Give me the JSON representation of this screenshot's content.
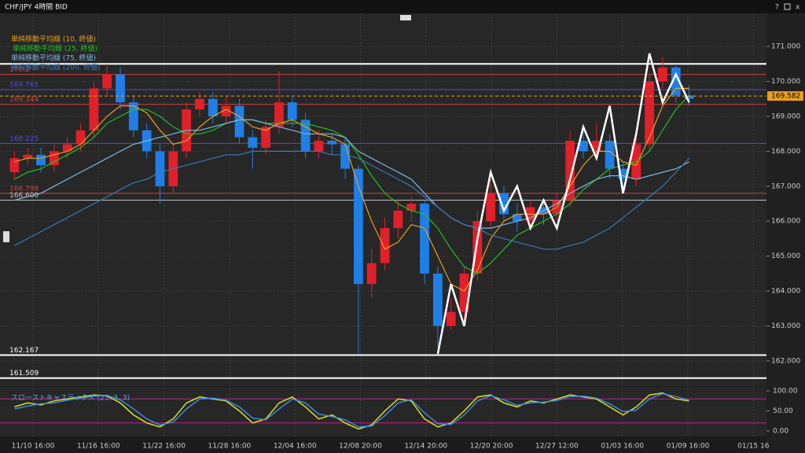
{
  "header": {
    "title": "CHF/JPY 4時間 BID",
    "help": "?",
    "close": "x"
  },
  "chart_data": {
    "type": "candlestick",
    "up_color": "#e0202a",
    "down_color": "#1f7fe6",
    "open": [
      167.4,
      167.8,
      167.9,
      167.6,
      168.0,
      168.2,
      168.6,
      169.8,
      170.2,
      169.4,
      168.6,
      168.0,
      167.0,
      168.0,
      169.2,
      169.5,
      169.0,
      169.3,
      168.4,
      168.1,
      168.7,
      169.4,
      168.9,
      168.0,
      168.3,
      168.2,
      167.5,
      164.2,
      164.8,
      165.8,
      166.3,
      166.5,
      164.5,
      163.0,
      163.4,
      164.5,
      166.0,
      166.8,
      166.2,
      166.0,
      166.4,
      166.2,
      166.6,
      168.3,
      168.0,
      168.3,
      167.5,
      167.2,
      168.2,
      170.0,
      170.4,
      169.6
    ],
    "high": [
      168.0,
      168.1,
      168.1,
      168.2,
      168.4,
      168.8,
      170.0,
      170.5,
      170.4,
      169.6,
      168.8,
      168.2,
      168.2,
      169.4,
      169.7,
      169.7,
      169.6,
      169.5,
      168.6,
      168.9,
      170.3,
      169.6,
      169.1,
      168.6,
      168.5,
      168.4,
      167.6,
      165.2,
      166.1,
      166.6,
      166.7,
      166.6,
      164.7,
      163.8,
      164.7,
      166.3,
      167.2,
      167.0,
      166.5,
      166.6,
      166.6,
      166.8,
      168.6,
      168.6,
      168.8,
      168.5,
      167.7,
      168.4,
      170.2,
      170.7,
      170.5,
      169.9
    ],
    "low": [
      167.2,
      167.6,
      167.4,
      167.4,
      167.8,
      168.0,
      168.4,
      169.6,
      169.2,
      168.4,
      167.8,
      166.5,
      166.8,
      167.8,
      169.0,
      168.8,
      168.8,
      168.2,
      167.5,
      167.9,
      168.5,
      168.7,
      167.8,
      167.8,
      167.9,
      167.2,
      162.2,
      163.8,
      164.6,
      165.5,
      166.0,
      164.2,
      162.4,
      162.9,
      163.2,
      164.3,
      165.8,
      166.0,
      165.7,
      165.8,
      165.9,
      166.0,
      166.4,
      167.8,
      167.8,
      167.2,
      166.9,
      167.0,
      168.0,
      169.8,
      169.4,
      169.3
    ],
    "close": [
      167.8,
      167.9,
      167.6,
      168.0,
      168.2,
      168.6,
      169.8,
      170.2,
      169.4,
      168.6,
      168.0,
      167.0,
      168.0,
      169.2,
      169.5,
      169.0,
      169.3,
      168.4,
      168.1,
      168.7,
      169.4,
      168.9,
      168.0,
      168.3,
      168.2,
      167.5,
      164.2,
      164.8,
      165.8,
      166.3,
      166.5,
      164.5,
      163.0,
      163.4,
      164.5,
      166.0,
      166.8,
      166.2,
      166.0,
      166.4,
      166.2,
      166.6,
      168.3,
      168.0,
      168.3,
      167.5,
      167.2,
      168.2,
      170.0,
      170.4,
      169.6,
      169.5
    ],
    "indicators": [
      {
        "name": "単純移動平均線 (10, 終値)",
        "color": "#e8a020",
        "values": [
          167.7,
          167.8,
          167.8,
          167.9,
          168.0,
          168.2,
          168.6,
          169.0,
          169.3,
          169.3,
          169.1,
          168.6,
          168.2,
          168.3,
          168.7,
          169.0,
          169.2,
          169.0,
          168.7,
          168.6,
          168.8,
          168.9,
          168.7,
          168.5,
          168.4,
          168.2,
          167.0,
          166.0,
          165.2,
          165.4,
          165.9,
          165.8,
          165.0,
          164.2,
          164.0,
          164.6,
          165.5,
          166.0,
          166.2,
          166.2,
          166.2,
          166.4,
          167.0,
          167.6,
          168.0,
          168.0,
          167.7,
          167.6,
          168.4,
          169.3,
          169.8,
          169.8
        ]
      },
      {
        "name": "単純移動平均線 (25, 終値)",
        "color": "#22c022",
        "values": [
          167.2,
          167.4,
          167.5,
          167.7,
          167.9,
          168.1,
          168.4,
          168.8,
          169.0,
          169.2,
          169.2,
          169.0,
          168.7,
          168.5,
          168.5,
          168.6,
          168.8,
          168.9,
          168.9,
          168.8,
          168.8,
          168.8,
          168.8,
          168.7,
          168.6,
          168.4,
          167.9,
          167.3,
          166.8,
          166.5,
          166.3,
          166.2,
          165.8,
          165.2,
          164.7,
          164.5,
          164.8,
          165.2,
          165.6,
          165.8,
          166.0,
          166.2,
          166.5,
          166.9,
          167.2,
          167.5,
          167.6,
          167.7,
          168.0,
          168.6,
          169.2,
          169.6
        ]
      },
      {
        "name": "単純移動平均線 (75, 終値)",
        "color": "#7fb8e0",
        "values": [
          166.6,
          166.7,
          166.8,
          167.0,
          167.2,
          167.4,
          167.6,
          167.8,
          168.0,
          168.2,
          168.3,
          168.4,
          168.5,
          168.6,
          168.6,
          168.7,
          168.8,
          168.9,
          168.9,
          168.8,
          168.7,
          168.6,
          168.5,
          168.5,
          168.5,
          168.4,
          168.0,
          167.8,
          167.6,
          167.4,
          167.2,
          166.8,
          166.4,
          166.1,
          165.9,
          165.8,
          165.8,
          165.9,
          166.0,
          166.1,
          166.3,
          166.5,
          166.8,
          167.0,
          167.2,
          167.3,
          167.3,
          167.2,
          167.3,
          167.4,
          167.5,
          167.7
        ]
      },
      {
        "name": "単純移動平均線 (200, 終値)",
        "color": "#3a78b8",
        "values": [
          165.3,
          165.5,
          165.7,
          165.9,
          166.1,
          166.3,
          166.5,
          166.7,
          166.9,
          167.1,
          167.2,
          167.4,
          167.5,
          167.6,
          167.7,
          167.8,
          167.9,
          167.9,
          168.0,
          168.0,
          168.0,
          168.0,
          168.0,
          168.0,
          167.9,
          167.9,
          167.8,
          167.6,
          167.4,
          167.2,
          167.0,
          166.7,
          166.4,
          166.1,
          165.9,
          165.8,
          165.6,
          165.5,
          165.4,
          165.3,
          165.2,
          165.2,
          165.3,
          165.4,
          165.6,
          165.8,
          166.1,
          166.4,
          166.7,
          167.0,
          167.4,
          167.8
        ]
      }
    ],
    "zigzag": {
      "color": "#ffffff",
      "values": [
        null,
        null,
        null,
        null,
        null,
        null,
        null,
        null,
        null,
        null,
        null,
        null,
        null,
        null,
        null,
        null,
        null,
        null,
        null,
        null,
        null,
        null,
        null,
        null,
        null,
        null,
        null,
        null,
        null,
        null,
        null,
        null,
        162.2,
        164.2,
        163.0,
        165.5,
        167.4,
        166.3,
        167.0,
        165.8,
        166.6,
        165.8,
        167.2,
        168.7,
        167.8,
        169.3,
        166.8,
        168.5,
        170.8,
        169.4,
        170.2,
        169.4
      ]
    },
    "levels": [
      {
        "value": 170.5,
        "color": "#ffffff"
      },
      {
        "value": 170.2,
        "color": "#d04040"
      },
      {
        "value": 169.765,
        "color": "#5050d0"
      },
      {
        "value": 169.344,
        "color": "#d04040"
      },
      {
        "value": 168.225,
        "color": "#5050d0"
      },
      {
        "value": 166.798,
        "color": "#d04040"
      },
      {
        "value": 166.6,
        "label": "166.600",
        "color": "#c0c0c0"
      },
      {
        "value": 162.167,
        "color": "#ffffff"
      },
      {
        "value": 161.509,
        "color": "#ffffff"
      }
    ],
    "current_price": {
      "value": 169.582,
      "color": "#e8a020"
    },
    "ylim": [
      161.3,
      171.7
    ],
    "yticks": [
      {
        "value": 162,
        "label": "162.000"
      },
      {
        "value": 163,
        "label": "163.000"
      },
      {
        "value": 164,
        "label": "164.000"
      },
      {
        "value": 165,
        "label": "165.000"
      },
      {
        "value": 166,
        "label": "166.000"
      },
      {
        "value": 167,
        "label": "167.000"
      },
      {
        "value": 168,
        "label": "168.000"
      },
      {
        "value": 169,
        "label": "169.000"
      },
      {
        "value": 170,
        "label": "170.000"
      },
      {
        "value": 171,
        "label": "171.000"
      }
    ],
    "xticks": [
      "11/10 16:00",
      "11/16 16:00",
      "11/22 16:00",
      "11/28 16:00",
      "12/04 16:00",
      "12/08 20:00",
      "12/14 20:00",
      "12/20 20:00",
      "12/27 12:00",
      "01/03 16:00",
      "01/09 16:00",
      "01/15 16"
    ],
    "grid": true,
    "stochastics": {
      "title": "スローストキャスティクス (25, 3, 3)",
      "ylim": [
        -10,
        110
      ],
      "yticks": [
        {
          "value": 0,
          "label": "0.00"
        },
        {
          "value": 50,
          "label": "50.00"
        },
        {
          "value": 100,
          "label": "100.00"
        }
      ],
      "levels": [
        80,
        20
      ],
      "level_color": "#c0208a",
      "series": [
        {
          "color": "#e0e020",
          "values": [
            60,
            70,
            65,
            75,
            80,
            85,
            90,
            88,
            70,
            40,
            20,
            10,
            30,
            70,
            85,
            80,
            75,
            50,
            20,
            30,
            70,
            85,
            60,
            30,
            40,
            20,
            5,
            15,
            50,
            80,
            75,
            30,
            10,
            20,
            50,
            85,
            90,
            70,
            60,
            75,
            70,
            80,
            90,
            85,
            80,
            60,
            40,
            60,
            90,
            95,
            80,
            75
          ]
        },
        {
          "color": "#3a8ae0",
          "values": [
            55,
            62,
            68,
            70,
            77,
            82,
            87,
            89,
            78,
            55,
            30,
            15,
            22,
            55,
            80,
            82,
            77,
            60,
            32,
            28,
            55,
            80,
            70,
            42,
            36,
            28,
            10,
            12,
            38,
            70,
            78,
            45,
            18,
            16,
            40,
            75,
            88,
            78,
            64,
            70,
            72,
            76,
            86,
            87,
            82,
            68,
            48,
            52,
            80,
            93,
            86,
            77
          ]
        }
      ]
    }
  }
}
